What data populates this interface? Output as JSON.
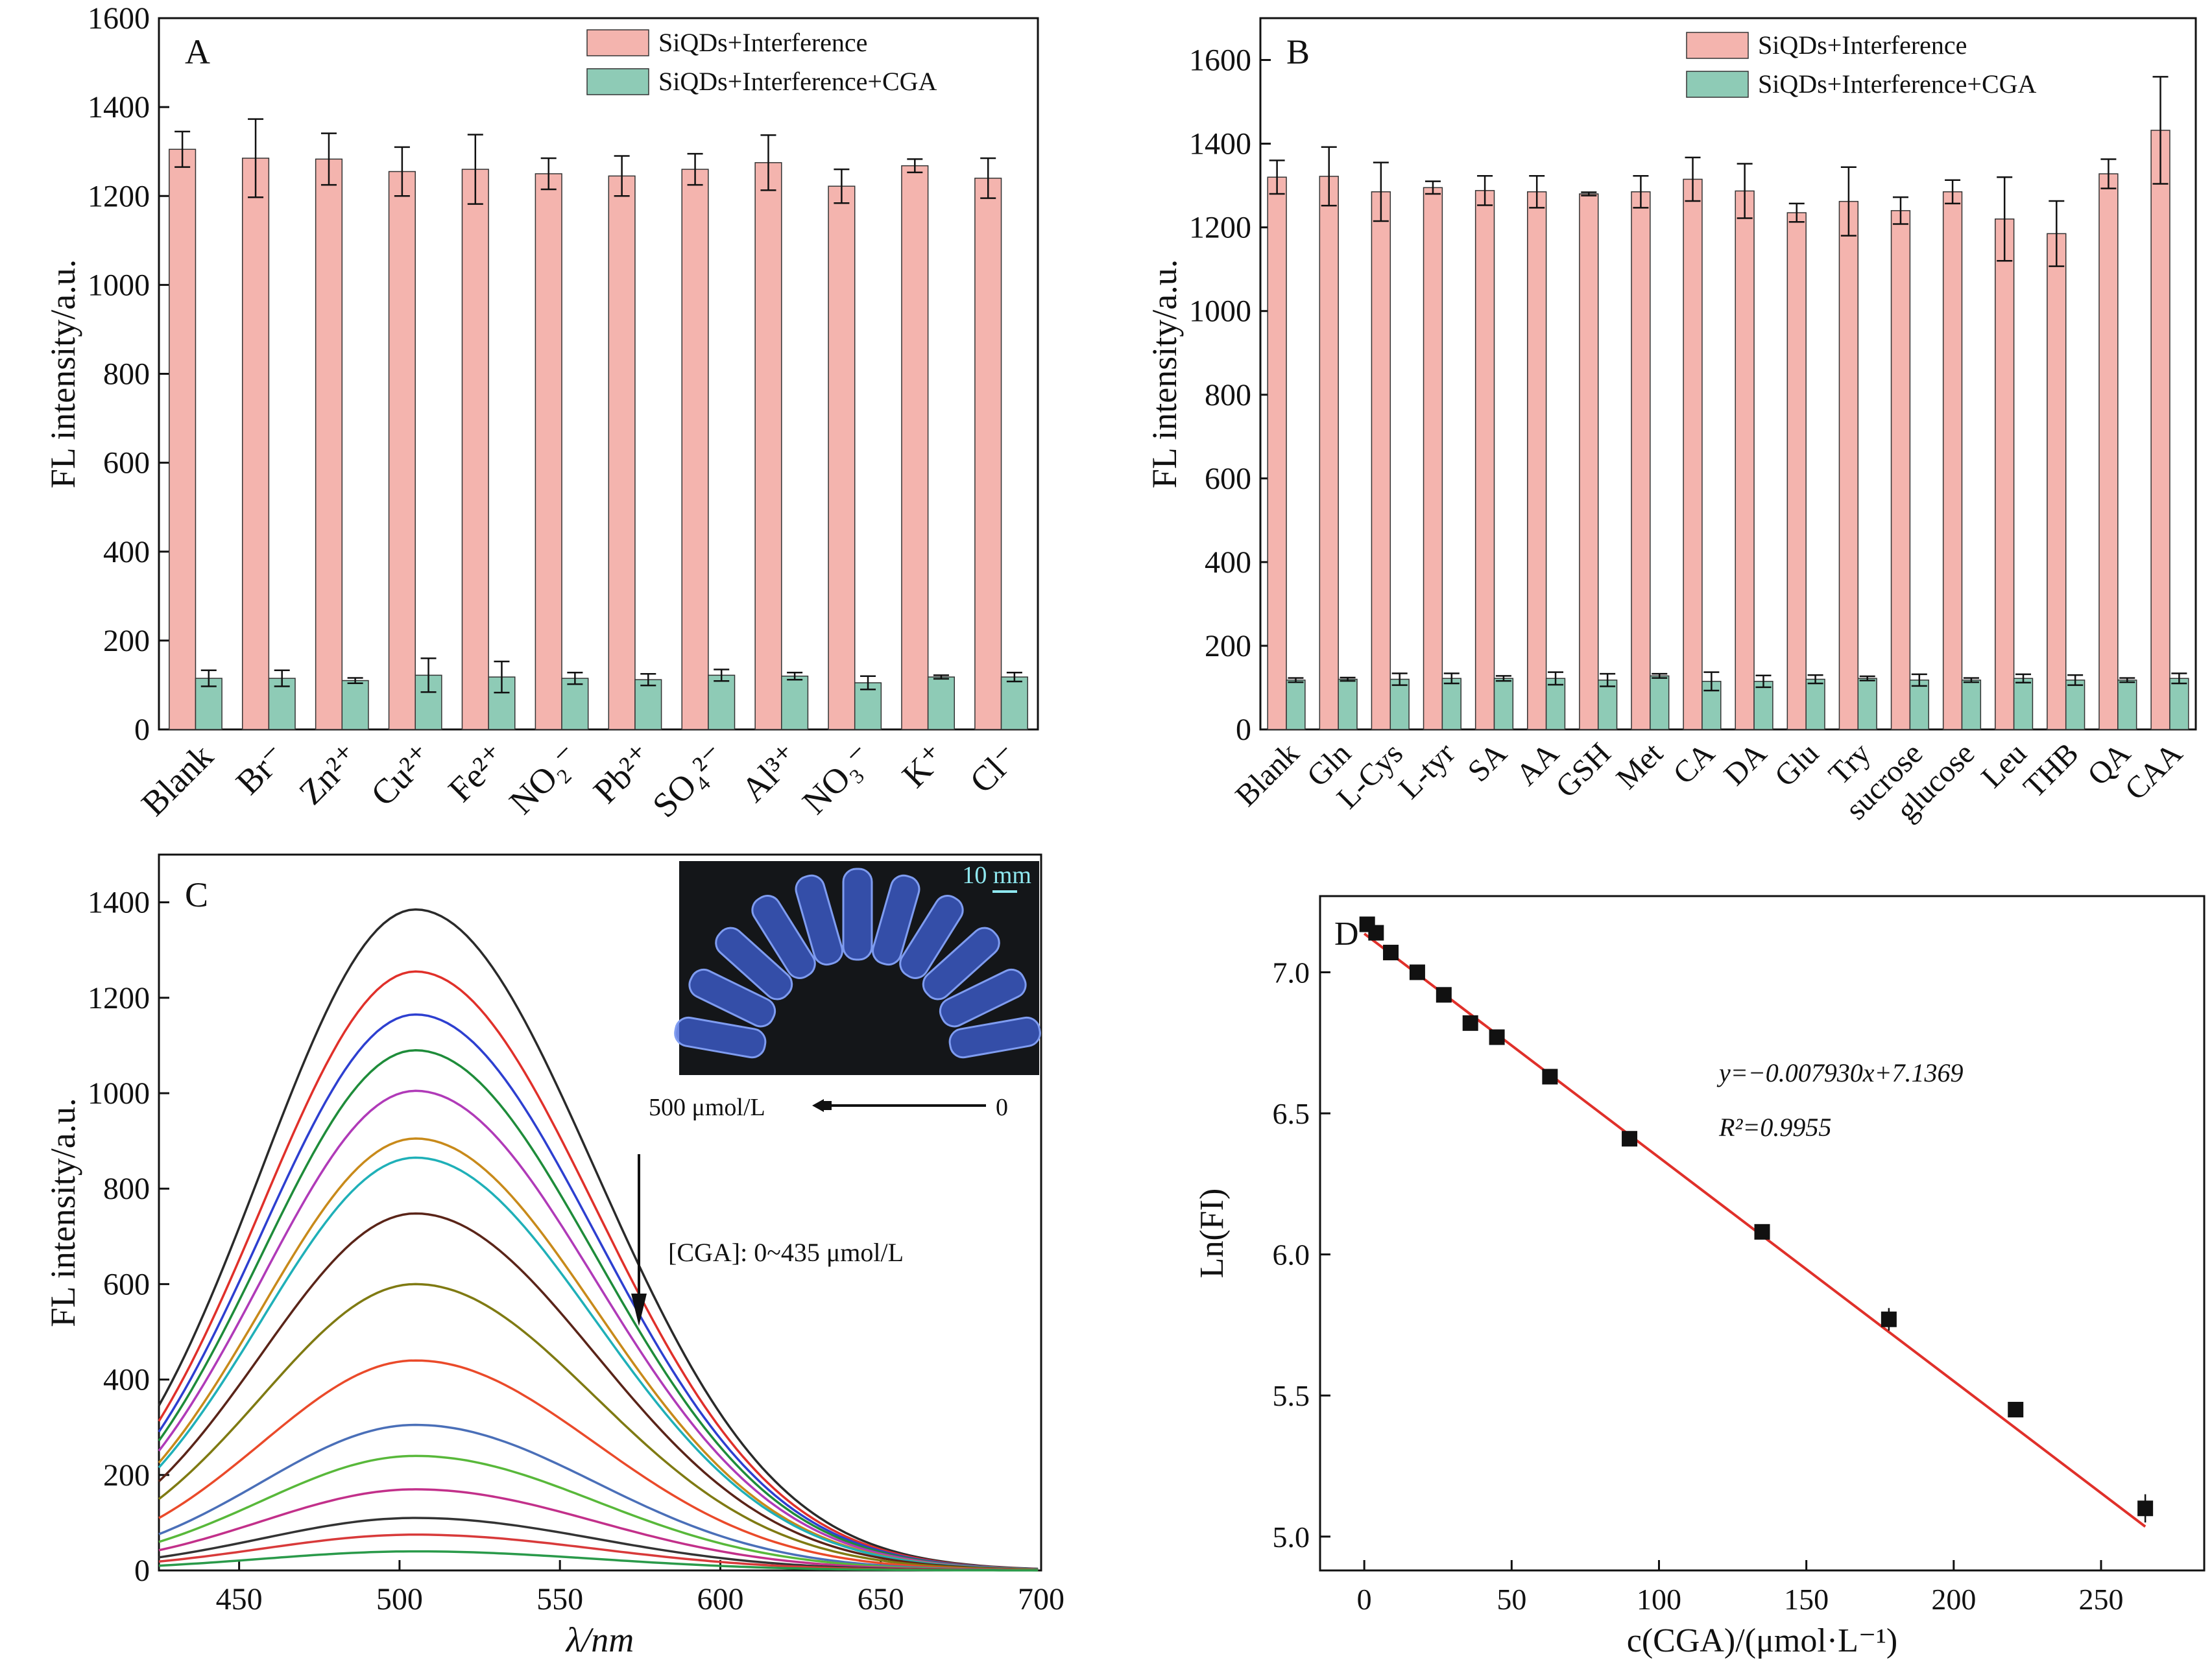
{
  "chart_data": [
    {
      "panel": "A",
      "type": "bar",
      "ylabel": "FL intensity/a.u.",
      "ylim": [
        0,
        1600
      ],
      "yticks": [
        0,
        200,
        400,
        600,
        800,
        1000,
        1200,
        1400,
        1600
      ],
      "categories": [
        "Blank",
        "Br⁻",
        "Zn²⁺",
        "Cu²⁺",
        "Fe²⁺",
        "NO₂⁻",
        "Pb²⁺",
        "SO₄²⁻",
        "Al³⁺",
        "NO₃⁻",
        "K⁺",
        "Cl⁻"
      ],
      "legend_position": "top-right",
      "series": [
        {
          "name": "SiQDs+Interference",
          "color": "#f4b4ae",
          "values": [
            1305,
            1285,
            1283,
            1255,
            1260,
            1250,
            1245,
            1260,
            1275,
            1222,
            1268,
            1240
          ],
          "errors": [
            40,
            88,
            58,
            55,
            78,
            35,
            45,
            35,
            62,
            38,
            15,
            45
          ]
        },
        {
          "name": "SiQDs+Interference+CGA",
          "color": "#8ecbb6",
          "values": [
            115,
            115,
            110,
            122,
            118,
            115,
            112,
            122,
            120,
            105,
            118,
            118
          ],
          "errors": [
            18,
            18,
            6,
            38,
            35,
            13,
            13,
            13,
            8,
            15,
            4,
            10
          ]
        }
      ]
    },
    {
      "panel": "B",
      "type": "bar",
      "ylabel": "FL intensity/a.u.",
      "ylim": [
        0,
        1700
      ],
      "yticks": [
        0,
        200,
        400,
        600,
        800,
        1000,
        1200,
        1400,
        1600
      ],
      "categories": [
        "Blank",
        "Gln",
        "L-Cys",
        "L-tyr",
        "SA",
        "AA",
        "GSH",
        "Met",
        "CA",
        "DA",
        "Glu",
        "Try",
        "sucrose",
        "glucose",
        "Leu",
        "THB",
        "QA",
        "CAA"
      ],
      "legend_position": "top-right",
      "series": [
        {
          "name": "SiQDs+Interference",
          "color": "#f4b4ae",
          "values": [
            1320,
            1322,
            1285,
            1295,
            1288,
            1285,
            1280,
            1285,
            1315,
            1287,
            1235,
            1262,
            1240,
            1285,
            1220,
            1185,
            1328,
            1432
          ],
          "errors": [
            40,
            70,
            70,
            15,
            35,
            38,
            4,
            38,
            52,
            65,
            22,
            82,
            32,
            28,
            100,
            78,
            35,
            128
          ]
        },
        {
          "name": "SiQDs+Interference+CGA",
          "color": "#8ecbb6",
          "values": [
            118,
            120,
            120,
            122,
            122,
            122,
            118,
            128,
            115,
            115,
            120,
            122,
            118,
            118,
            122,
            118,
            118,
            122
          ],
          "errors": [
            5,
            4,
            14,
            12,
            6,
            15,
            15,
            5,
            22,
            14,
            10,
            5,
            14,
            5,
            10,
            12,
            5,
            12
          ]
        }
      ]
    },
    {
      "panel": "C",
      "type": "line",
      "xlabel": "λ/nm",
      "ylabel": "FL intensity/a.u.",
      "xlim": [
        425,
        700
      ],
      "ylim": [
        0,
        1500
      ],
      "xticks": [
        450,
        500,
        550,
        600,
        650,
        700
      ],
      "yticks": [
        0,
        200,
        400,
        600,
        800,
        1000,
        1200,
        1400
      ],
      "peak_wavelength": 505,
      "curve_peaks": [
        1385,
        1255,
        1165,
        1090,
        1005,
        905,
        865,
        748,
        600,
        440,
        305,
        240,
        170,
        110,
        75,
        40
      ],
      "curve_colors": [
        "#2a2a2a",
        "#e0302a",
        "#2d3fd0",
        "#1e8c3a",
        "#b03ab8",
        "#c88a1a",
        "#1fb0b8",
        "#5a2418",
        "#7f7a12",
        "#ea4a2a",
        "#4a6fb8",
        "#58b83a",
        "#c2308a",
        "#333333",
        "#d83a3a",
        "#2a9a4a"
      ],
      "annotation": "[CGA]: 0~435 μmol/L",
      "inset_scale": "10 mm",
      "inset_left_label": "500 μmol/L",
      "inset_right_label": "0"
    },
    {
      "panel": "D",
      "type": "scatter",
      "xlabel": "c(CGA)/(μmol·L⁻¹)",
      "ylabel": "Ln(FI)",
      "xlim": [
        -15,
        285
      ],
      "ylim": [
        4.88,
        7.27
      ],
      "xticks": [
        0,
        50,
        100,
        150,
        200,
        250
      ],
      "yticks": [
        5.0,
        5.5,
        6.0,
        6.5,
        7.0
      ],
      "x": [
        1,
        4,
        9,
        18,
        27,
        36,
        45,
        63,
        90,
        135,
        178,
        221,
        265
      ],
      "y": [
        7.17,
        7.14,
        7.07,
        7.0,
        6.92,
        6.82,
        6.77,
        6.63,
        6.41,
        6.08,
        5.77,
        5.45,
        5.1
      ],
      "errors": [
        0.01,
        0.01,
        0.01,
        0.01,
        0.01,
        0.01,
        0.01,
        0.01,
        0.01,
        0.01,
        0.04,
        0.01,
        0.05
      ],
      "fit": {
        "slope": -0.00793,
        "intercept": 7.1369,
        "color": "#e0302a"
      },
      "equation": "y=−0.007930x+7.1369",
      "r2": "R²=0.9955"
    }
  ]
}
